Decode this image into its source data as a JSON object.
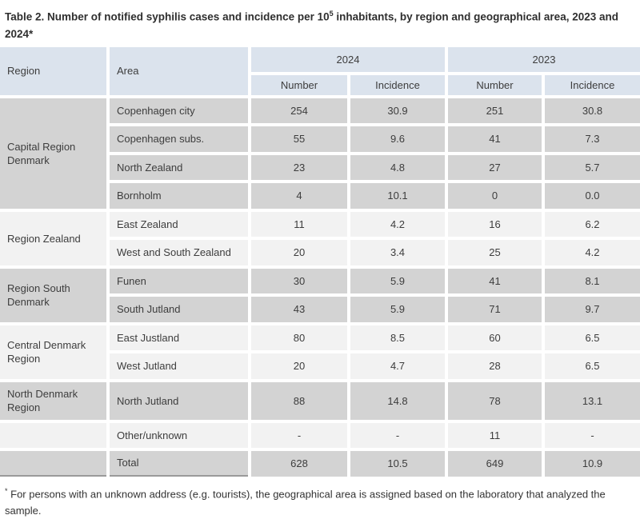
{
  "title": {
    "prefix": "Table 2. Number of notified syphilis cases and incidence per 10",
    "sup": "5",
    "suffix": " inhabitants, by region and geographical area, 2023 and 2024*"
  },
  "header": {
    "region": "Region",
    "area": "Area",
    "year_2024": "2024",
    "year_2023": "2023",
    "number_2024": "Number",
    "incidence_2024": "Incidence",
    "number_2023": "Number",
    "incidence_2023": "Incidence"
  },
  "groups": [
    {
      "region": "Capital Region Denmark",
      "rows": [
        {
          "area": "Copenhagen city",
          "n2024": "254",
          "i2024": "30.9",
          "n2023": "251",
          "i2023": "30.8"
        },
        {
          "area": "Copenhagen subs.",
          "n2024": "55",
          "i2024": "9.6",
          "n2023": "41",
          "i2023": "7.3"
        },
        {
          "area": "North Zealand",
          "n2024": "23",
          "i2024": "4.8",
          "n2023": "27",
          "i2023": "5.7"
        },
        {
          "area": "Bornholm",
          "n2024": "4",
          "i2024": "10.1",
          "n2023": "0",
          "i2023": "0.0"
        }
      ]
    },
    {
      "region": "Region Zealand",
      "rows": [
        {
          "area": "East Zealand",
          "n2024": "11",
          "i2024": "4.2",
          "n2023": "16",
          "i2023": "6.2"
        },
        {
          "area": "West and South Zealand",
          "n2024": "20",
          "i2024": "3.4",
          "n2023": "25",
          "i2023": "4.2"
        }
      ]
    },
    {
      "region": "Region South Denmark",
      "rows": [
        {
          "area": "Funen",
          "n2024": "30",
          "i2024": "5.9",
          "n2023": "41",
          "i2023": "8.1"
        },
        {
          "area": "South Jutland",
          "n2024": "43",
          "i2024": "5.9",
          "n2023": "71",
          "i2023": "9.7"
        }
      ]
    },
    {
      "region": "Central Denmark Region",
      "rows": [
        {
          "area": "East Justland",
          "n2024": "80",
          "i2024": "8.5",
          "n2023": "60",
          "i2023": "6.5"
        },
        {
          "area": "West Jutland",
          "n2024": "20",
          "i2024": "4.7",
          "n2023": "28",
          "i2023": "6.5"
        }
      ]
    },
    {
      "region": "North Denmark Region",
      "rows": [
        {
          "area": "North Jutland",
          "n2024": "88",
          "i2024": "14.8",
          "n2023": "78",
          "i2023": "13.1"
        }
      ]
    },
    {
      "region": "",
      "rows": [
        {
          "area": "Other/unknown",
          "n2024": "-",
          "i2024": "-",
          "n2023": "11",
          "i2023": "-"
        }
      ]
    },
    {
      "region": "",
      "rows": [
        {
          "area": "Total",
          "n2024": "628",
          "i2024": "10.5",
          "n2023": "649",
          "i2023": "10.9"
        }
      ]
    }
  ],
  "footnote": {
    "marker": "*",
    "text": "For persons with an unknown address (e.g. tourists), the geographical area is assigned based on the laboratory that analyzed the sample."
  },
  "colors": {
    "header_bg": "#dbe3ed",
    "row_gray": "#d3d3d3",
    "row_light": "#f2f2f2",
    "text": "#3d3d3d",
    "bottom_rule": "#9a9a9a"
  }
}
